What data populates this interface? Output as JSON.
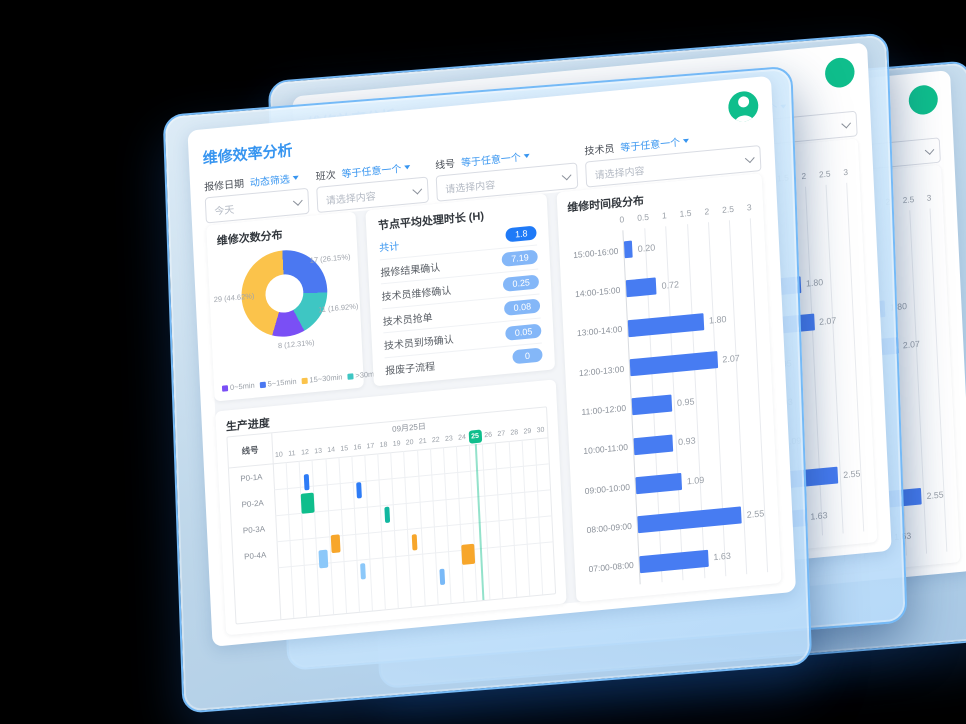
{
  "header": {
    "title": "维修效率分析"
  },
  "filters": [
    {
      "label": "报修日期",
      "op": "动态筛选",
      "value": "今天"
    },
    {
      "label": "班次",
      "op": "等于任意一个",
      "placeholder": "请选择内容"
    },
    {
      "label": "线号",
      "op": "等于任意一个",
      "placeholder": "请选择内容"
    },
    {
      "label": "技术员",
      "op": "等于任意一个",
      "placeholder": "请选择内容"
    }
  ],
  "chart_data": [
    {
      "type": "pie",
      "title": "维修次数分布",
      "legend": [
        "0~5min",
        "5~15min",
        "15~30min",
        ">30min"
      ],
      "legend_colors": [
        "#7a4ff5",
        "#4b78f1",
        "#fbc34b",
        "#3ec6c3"
      ],
      "slices": [
        {
          "label": "5~15min",
          "value": 17,
          "pct": "26.15%",
          "color": "#4b78f1"
        },
        {
          "label": ">30min",
          "value": 11,
          "pct": "16.92%",
          "color": "#3ec6c3"
        },
        {
          "label": "0~5min",
          "value": 8,
          "pct": "12.31%",
          "color": "#7a4ff5"
        },
        {
          "label": "15~30min",
          "value": 29,
          "pct": "44.62%",
          "color": "#fbc34b"
        }
      ],
      "callouts": [
        "17 (26.15%)",
        "11 (16.92%)",
        "8 (12.31%)",
        "29 (44.62%)"
      ]
    },
    {
      "type": "table",
      "title": "节点平均处理时长 (H)",
      "rows": [
        [
          "共计",
          "1.8"
        ],
        [
          "报修结果确认",
          "7.19"
        ],
        [
          "技术员维修确认",
          "0.25"
        ],
        [
          "技术员抢单",
          "0.08"
        ],
        [
          "技术员到场确认",
          "0.05"
        ],
        [
          "报废子流程",
          "0"
        ]
      ]
    },
    {
      "type": "bar",
      "orientation": "horizontal",
      "title": "维修时间段分布",
      "categories": [
        "15:00-16:00",
        "14:00-15:00",
        "13:00-14:00",
        "12:00-13:00",
        "11:00-12:00",
        "10:00-11:00",
        "09:00-10:00",
        "08:00-09:00",
        "07:00-08:00"
      ],
      "values": [
        0.2,
        0.72,
        1.8,
        2.07,
        0.95,
        0.93,
        1.09,
        2.55,
        1.63
      ],
      "value_labels": [
        "0.20",
        "0.72",
        "1.80",
        "2.07",
        "0.95",
        "0.93",
        "1.09",
        "2.55",
        "1.63"
      ],
      "xlim": [
        0,
        3
      ],
      "xticks": [
        "0",
        "0.5",
        "1",
        "1.5",
        "2",
        "2.5",
        "3"
      ],
      "bar_color": "#477cf2",
      "grid": true,
      "legend_position": "none"
    },
    {
      "type": "gantt",
      "title": "生产进度",
      "corner_header": "线号",
      "date_label": "09月25日",
      "days": [
        "10",
        "11",
        "12",
        "13",
        "14",
        "15",
        "16",
        "17",
        "18",
        "19",
        "20",
        "21",
        "22",
        "23",
        "24",
        "25",
        "26",
        "27",
        "28",
        "29",
        "30"
      ],
      "highlight_day": "25",
      "highlight_color": "#0fbe8c",
      "rows": [
        "P0-1A",
        "P0-2A",
        "P0-3A",
        "P0-4A"
      ],
      "blocks": [
        {
          "day": 12,
          "row": 0.35,
          "color": "#2e7cf6",
          "size": "sm"
        },
        {
          "day": 16,
          "row": 0.85,
          "color": "#2e7cf6",
          "size": "sm"
        },
        {
          "day": 12,
          "row": 1.15,
          "color": "#0fbe8c",
          "size": "lg"
        },
        {
          "day": 18,
          "row": 1.9,
          "color": "#12b7a0",
          "size": "sm"
        },
        {
          "day": 14,
          "row": 2.8,
          "color": "#f7a62b",
          "size": "md"
        },
        {
          "day": 20,
          "row": 3.05,
          "color": "#f7a62b",
          "size": "sm"
        },
        {
          "day": 13,
          "row": 3.35,
          "color": "#8cc8f9",
          "size": "md"
        },
        {
          "day": 24,
          "row": 3.7,
          "color": "#f7a62b",
          "size": "lg"
        },
        {
          "day": 16,
          "row": 3.95,
          "color": "#8cc8f9",
          "size": "sm"
        },
        {
          "day": 22,
          "row": 4.45,
          "color": "#79b9f7",
          "size": "sm"
        }
      ]
    }
  ]
}
